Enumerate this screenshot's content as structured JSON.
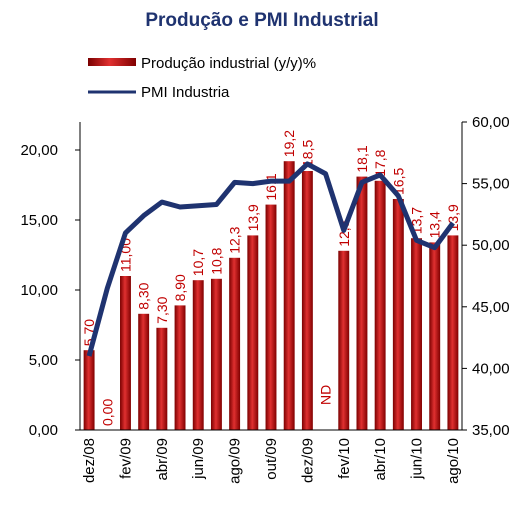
{
  "chart_data": {
    "type": "bar_line",
    "title": "Produção e PMI Industrial",
    "categories": [
      "dez/08",
      null,
      "fev/09",
      null,
      "abr/09",
      null,
      "jun/09",
      null,
      "ago/09",
      null,
      "out/09",
      null,
      "dez/09",
      null,
      "fev/10",
      null,
      "abr/10",
      null,
      "jun/10",
      null,
      "ago/10"
    ],
    "series": [
      {
        "name": "Produção industrial (y/y)%",
        "color": "#b00000",
        "values": [
          5.7,
          0,
          11,
          8.3,
          7.3,
          8.9,
          10.7,
          10.8,
          12.3,
          13.9,
          16.1,
          19.2,
          18.5,
          null,
          12.8,
          18.1,
          17.8,
          16.5,
          13.7,
          13.4,
          13.9
        ],
        "value_labels": [
          "5,70",
          "0,00",
          "11,00",
          "8,30",
          "7,30",
          "8,90",
          "10,7",
          "10,8",
          "12,3",
          "13,9",
          "16,1",
          "19,2",
          "18,5",
          "ND",
          "12,8",
          "18,1",
          "17,8",
          "16,5",
          "13,7",
          "13,4",
          "13,9"
        ]
      },
      {
        "name": "PMI Industria",
        "color": "#1f3370",
        "axis": "y2",
        "values": [
          41,
          46.5,
          51,
          52.4,
          53.5,
          53.1,
          53.2,
          53.3,
          55.1,
          55,
          55.2,
          55.2,
          56.6,
          55.8,
          51.2,
          55.1,
          55.7,
          54,
          50.4,
          49.8,
          51.8
        ]
      }
    ],
    "ylim": [
      0,
      22
    ],
    "yticks": [
      {
        "value": 0,
        "label": "0,00"
      },
      {
        "value": 5,
        "label": "5,00"
      },
      {
        "value": 10,
        "label": "10,00"
      },
      {
        "value": 15,
        "label": "15,00"
      },
      {
        "value": 20,
        "label": "20,00"
      }
    ],
    "y2lim": [
      35,
      60
    ],
    "y2ticks": [
      {
        "value": 35,
        "label": "35,00"
      },
      {
        "value": 40,
        "label": "40,00"
      },
      {
        "value": 45,
        "label": "45,00"
      },
      {
        "value": 50,
        "label": "50,00"
      },
      {
        "value": 55,
        "label": "55,00"
      },
      {
        "value": 60,
        "label": "60,00"
      }
    ]
  }
}
